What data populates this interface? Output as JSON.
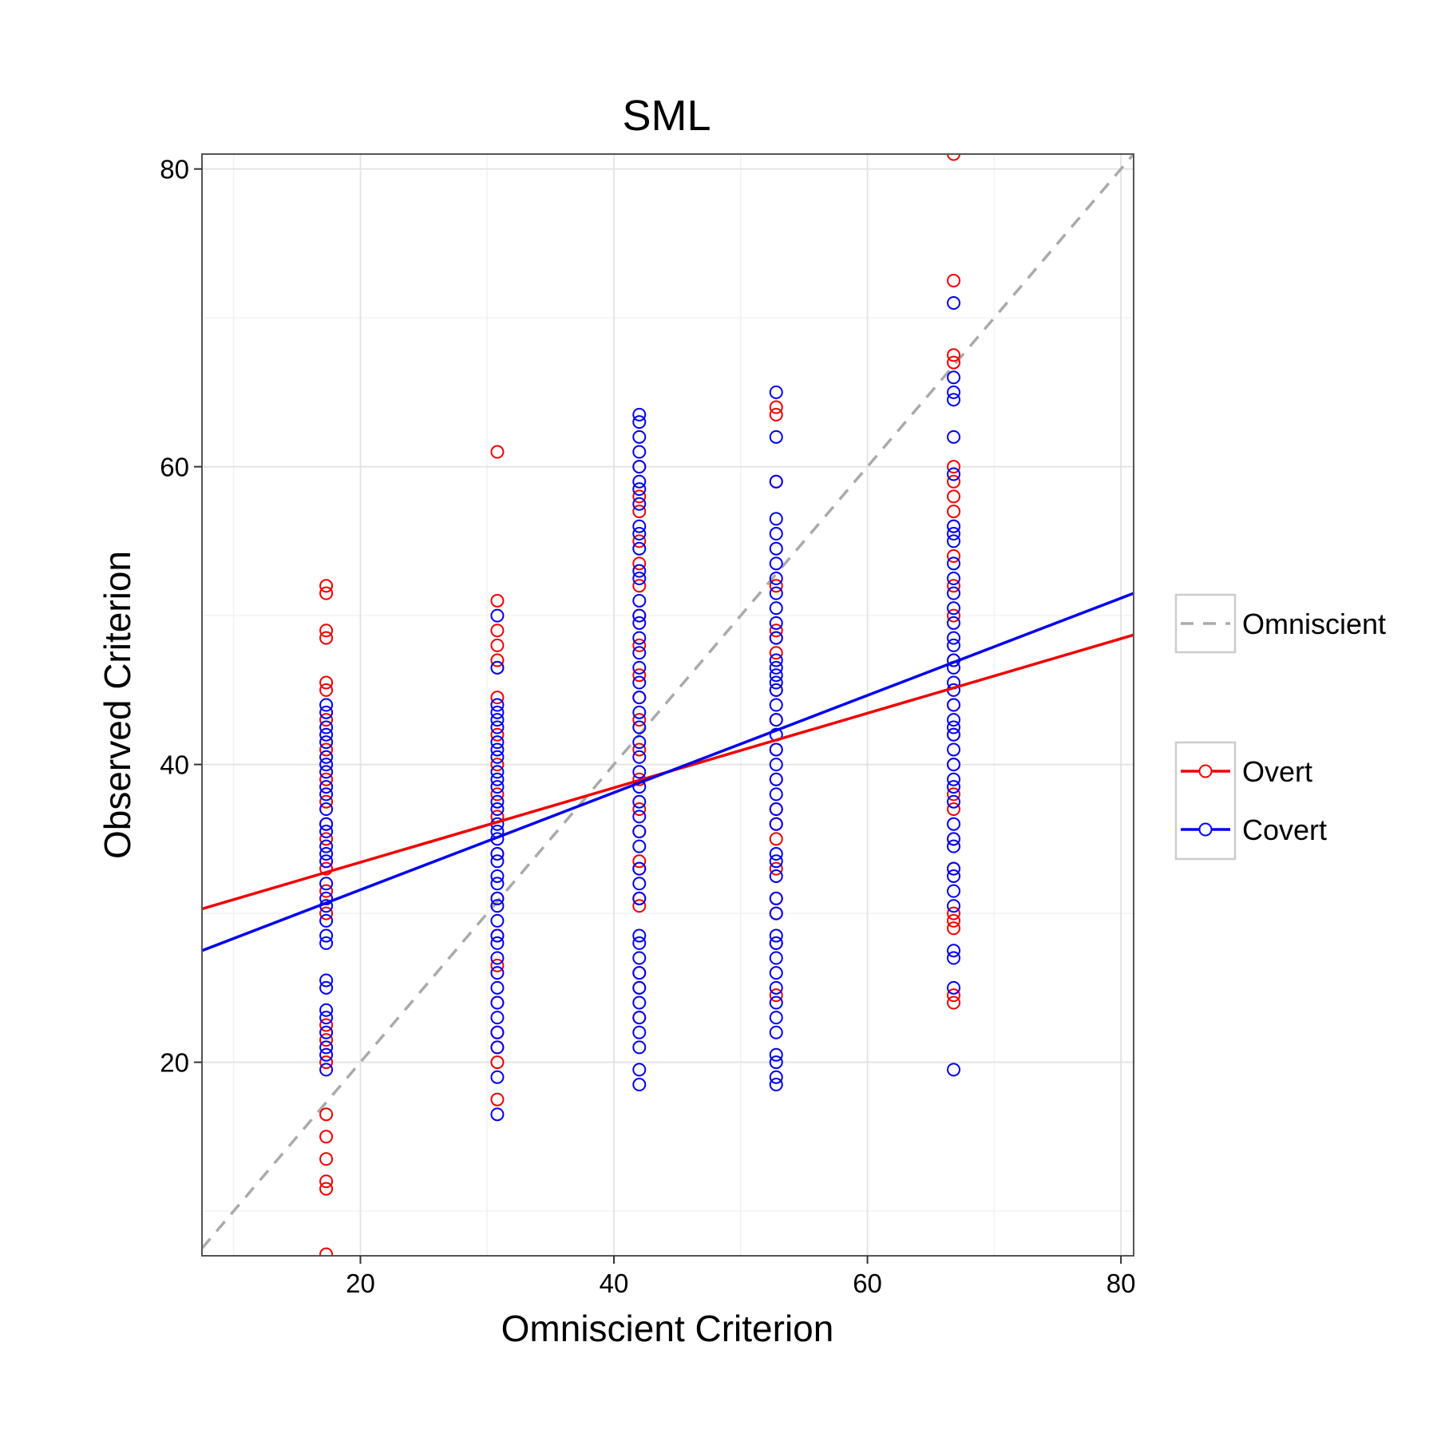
{
  "chart_data": {
    "type": "scatter",
    "title": "SML",
    "xlabel": "Omniscient Criterion",
    "ylabel": "Observed Criterion",
    "xlim": [
      7.5,
      81
    ],
    "ylim": [
      7.0,
      81
    ],
    "x_ticks": [
      20,
      40,
      60,
      80
    ],
    "y_ticks": [
      20,
      40,
      60,
      80
    ],
    "grid": true,
    "legend_position": "right",
    "reference_line": {
      "name": "Omniscient",
      "slope": 1,
      "intercept": 0,
      "color": "#aaaaaa",
      "style": "dashed"
    },
    "series": [
      {
        "name": "Overt",
        "color": "#ee0000",
        "fit": {
          "x": [
            7.5,
            81
          ],
          "y": [
            30.3,
            48.7
          ]
        },
        "points": [
          [
            17.3,
            52.0
          ],
          [
            17.3,
            51.5
          ],
          [
            17.3,
            49.0
          ],
          [
            17.3,
            48.5
          ],
          [
            17.3,
            45.5
          ],
          [
            17.3,
            45.0
          ],
          [
            17.3,
            43.0
          ],
          [
            17.3,
            41.0
          ],
          [
            17.3,
            39.0
          ],
          [
            17.3,
            37.5
          ],
          [
            17.3,
            36.0
          ],
          [
            17.3,
            35.0
          ],
          [
            17.3,
            33.0
          ],
          [
            17.3,
            31.5
          ],
          [
            17.3,
            30.0
          ],
          [
            17.3,
            22.5
          ],
          [
            17.3,
            21.5
          ],
          [
            17.3,
            20.0
          ],
          [
            17.3,
            16.5
          ],
          [
            17.3,
            15.0
          ],
          [
            17.3,
            13.5
          ],
          [
            17.3,
            12.0
          ],
          [
            17.3,
            11.5
          ],
          [
            17.3,
            7.1
          ],
          [
            30.8,
            61.0
          ],
          [
            30.8,
            51.0
          ],
          [
            30.8,
            49.0
          ],
          [
            30.8,
            48.0
          ],
          [
            30.8,
            47.0
          ],
          [
            30.8,
            46.5
          ],
          [
            30.8,
            44.5
          ],
          [
            30.8,
            42.0
          ],
          [
            30.8,
            40.0
          ],
          [
            30.8,
            38.0
          ],
          [
            30.8,
            36.5
          ],
          [
            30.8,
            34.0
          ],
          [
            30.8,
            31.0
          ],
          [
            30.8,
            28.5
          ],
          [
            30.8,
            26.5
          ],
          [
            30.8,
            24.0
          ],
          [
            30.8,
            22.0
          ],
          [
            30.8,
            21.0
          ],
          [
            30.8,
            20.0
          ],
          [
            30.8,
            17.5
          ],
          [
            42.0,
            60.0
          ],
          [
            42.0,
            58.0
          ],
          [
            42.0,
            57.0
          ],
          [
            42.0,
            55.0
          ],
          [
            42.0,
            53.5
          ],
          [
            42.0,
            52.0
          ],
          [
            42.0,
            50.0
          ],
          [
            42.0,
            48.0
          ],
          [
            42.0,
            46.0
          ],
          [
            42.0,
            44.5
          ],
          [
            42.0,
            43.0
          ],
          [
            42.0,
            41.0
          ],
          [
            42.0,
            39.0
          ],
          [
            42.0,
            37.0
          ],
          [
            42.0,
            35.5
          ],
          [
            42.0,
            33.5
          ],
          [
            42.0,
            33.0
          ],
          [
            42.0,
            31.0
          ],
          [
            42.0,
            30.5
          ],
          [
            42.0,
            26.0
          ],
          [
            42.0,
            25.0
          ],
          [
            42.0,
            23.0
          ],
          [
            52.8,
            64.0
          ],
          [
            52.8,
            63.5
          ],
          [
            52.8,
            59.0
          ],
          [
            52.8,
            52.0
          ],
          [
            52.8,
            49.0
          ],
          [
            52.8,
            48.5
          ],
          [
            52.8,
            47.5
          ],
          [
            52.8,
            45.0
          ],
          [
            52.8,
            43.0
          ],
          [
            52.8,
            41.0
          ],
          [
            52.8,
            39.0
          ],
          [
            52.8,
            37.0
          ],
          [
            52.8,
            36.0
          ],
          [
            52.8,
            35.0
          ],
          [
            52.8,
            33.0
          ],
          [
            52.8,
            31.0
          ],
          [
            52.8,
            30.0
          ],
          [
            52.8,
            28.0
          ],
          [
            52.8,
            24.5
          ],
          [
            66.8,
            81.0
          ],
          [
            66.8,
            72.5
          ],
          [
            66.8,
            67.5
          ],
          [
            66.8,
            67.0
          ],
          [
            66.8,
            60.0
          ],
          [
            66.8,
            59.0
          ],
          [
            66.8,
            58.0
          ],
          [
            66.8,
            57.0
          ],
          [
            66.8,
            56.0
          ],
          [
            66.8,
            54.0
          ],
          [
            66.8,
            52.0
          ],
          [
            66.8,
            50.0
          ],
          [
            66.8,
            47.0
          ],
          [
            66.8,
            44.0
          ],
          [
            66.8,
            42.0
          ],
          [
            66.8,
            40.0
          ],
          [
            66.8,
            38.0
          ],
          [
            66.8,
            37.0
          ],
          [
            66.8,
            35.0
          ],
          [
            66.8,
            33.0
          ],
          [
            66.8,
            30.0
          ],
          [
            66.8,
            29.5
          ],
          [
            66.8,
            29.0
          ],
          [
            66.8,
            24.5
          ],
          [
            66.8,
            24.0
          ]
        ]
      },
      {
        "name": "Covert",
        "color": "#0000ee",
        "fit": {
          "x": [
            7.5,
            81
          ],
          "y": [
            27.5,
            51.5
          ]
        },
        "points": [
          [
            17.3,
            44.0
          ],
          [
            17.3,
            43.5
          ],
          [
            17.3,
            42.5
          ],
          [
            17.3,
            42.0
          ],
          [
            17.3,
            41.5
          ],
          [
            17.3,
            40.5
          ],
          [
            17.3,
            40.0
          ],
          [
            17.3,
            39.5
          ],
          [
            17.3,
            38.5
          ],
          [
            17.3,
            38.0
          ],
          [
            17.3,
            37.0
          ],
          [
            17.3,
            36.0
          ],
          [
            17.3,
            35.5
          ],
          [
            17.3,
            34.5
          ],
          [
            17.3,
            34.0
          ],
          [
            17.3,
            33.5
          ],
          [
            17.3,
            32.0
          ],
          [
            17.3,
            31.0
          ],
          [
            17.3,
            30.5
          ],
          [
            17.3,
            29.5
          ],
          [
            17.3,
            28.5
          ],
          [
            17.3,
            28.0
          ],
          [
            17.3,
            25.5
          ],
          [
            17.3,
            25.0
          ],
          [
            17.3,
            23.5
          ],
          [
            17.3,
            23.0
          ],
          [
            17.3,
            22.0
          ],
          [
            17.3,
            21.0
          ],
          [
            17.3,
            20.5
          ],
          [
            17.3,
            19.5
          ],
          [
            30.8,
            50.0
          ],
          [
            30.8,
            46.5
          ],
          [
            30.8,
            44.0
          ],
          [
            30.8,
            43.5
          ],
          [
            30.8,
            43.0
          ],
          [
            30.8,
            42.5
          ],
          [
            30.8,
            41.5
          ],
          [
            30.8,
            41.0
          ],
          [
            30.8,
            40.5
          ],
          [
            30.8,
            39.5
          ],
          [
            30.8,
            39.0
          ],
          [
            30.8,
            38.5
          ],
          [
            30.8,
            37.5
          ],
          [
            30.8,
            37.0
          ],
          [
            30.8,
            36.0
          ],
          [
            30.8,
            35.5
          ],
          [
            30.8,
            35.0
          ],
          [
            30.8,
            34.0
          ],
          [
            30.8,
            33.5
          ],
          [
            30.8,
            32.5
          ],
          [
            30.8,
            32.0
          ],
          [
            30.8,
            31.0
          ],
          [
            30.8,
            30.5
          ],
          [
            30.8,
            29.5
          ],
          [
            30.8,
            28.5
          ],
          [
            30.8,
            28.0
          ],
          [
            30.8,
            27.0
          ],
          [
            30.8,
            26.0
          ],
          [
            30.8,
            25.0
          ],
          [
            30.8,
            24.0
          ],
          [
            30.8,
            23.0
          ],
          [
            30.8,
            22.0
          ],
          [
            30.8,
            21.0
          ],
          [
            30.8,
            19.0
          ],
          [
            30.8,
            16.5
          ],
          [
            42.0,
            63.5
          ],
          [
            42.0,
            63.0
          ],
          [
            42.0,
            62.0
          ],
          [
            42.0,
            61.0
          ],
          [
            42.0,
            60.0
          ],
          [
            42.0,
            59.0
          ],
          [
            42.0,
            58.5
          ],
          [
            42.0,
            57.5
          ],
          [
            42.0,
            56.0
          ],
          [
            42.0,
            55.5
          ],
          [
            42.0,
            54.5
          ],
          [
            42.0,
            53.0
          ],
          [
            42.0,
            52.5
          ],
          [
            42.0,
            51.0
          ],
          [
            42.0,
            50.0
          ],
          [
            42.0,
            49.5
          ],
          [
            42.0,
            48.5
          ],
          [
            42.0,
            47.5
          ],
          [
            42.0,
            46.5
          ],
          [
            42.0,
            45.5
          ],
          [
            42.0,
            44.5
          ],
          [
            42.0,
            43.5
          ],
          [
            42.0,
            42.5
          ],
          [
            42.0,
            41.5
          ],
          [
            42.0,
            40.5
          ],
          [
            42.0,
            39.5
          ],
          [
            42.0,
            38.5
          ],
          [
            42.0,
            37.5
          ],
          [
            42.0,
            36.5
          ],
          [
            42.0,
            35.5
          ],
          [
            42.0,
            34.5
          ],
          [
            42.0,
            33.0
          ],
          [
            42.0,
            32.0
          ],
          [
            42.0,
            31.0
          ],
          [
            42.0,
            28.5
          ],
          [
            42.0,
            28.0
          ],
          [
            42.0,
            27.0
          ],
          [
            42.0,
            26.0
          ],
          [
            42.0,
            25.0
          ],
          [
            42.0,
            24.0
          ],
          [
            42.0,
            23.0
          ],
          [
            42.0,
            22.0
          ],
          [
            42.0,
            21.0
          ],
          [
            42.0,
            19.5
          ],
          [
            42.0,
            18.5
          ],
          [
            52.8,
            65.0
          ],
          [
            52.8,
            62.0
          ],
          [
            52.8,
            59.0
          ],
          [
            52.8,
            56.5
          ],
          [
            52.8,
            55.5
          ],
          [
            52.8,
            54.5
          ],
          [
            52.8,
            53.5
          ],
          [
            52.8,
            52.5
          ],
          [
            52.8,
            51.5
          ],
          [
            52.8,
            50.5
          ],
          [
            52.8,
            49.5
          ],
          [
            52.8,
            48.5
          ],
          [
            52.8,
            47.0
          ],
          [
            52.8,
            46.5
          ],
          [
            52.8,
            46.0
          ],
          [
            52.8,
            45.5
          ],
          [
            52.8,
            45.0
          ],
          [
            52.8,
            44.0
          ],
          [
            52.8,
            43.0
          ],
          [
            52.8,
            42.0
          ],
          [
            52.8,
            41.0
          ],
          [
            52.8,
            40.0
          ],
          [
            52.8,
            39.0
          ],
          [
            52.8,
            38.0
          ],
          [
            52.8,
            37.0
          ],
          [
            52.8,
            36.0
          ],
          [
            52.8,
            34.0
          ],
          [
            52.8,
            33.5
          ],
          [
            52.8,
            32.5
          ],
          [
            52.8,
            31.0
          ],
          [
            52.8,
            30.0
          ],
          [
            52.8,
            28.5
          ],
          [
            52.8,
            28.0
          ],
          [
            52.8,
            27.0
          ],
          [
            52.8,
            26.0
          ],
          [
            52.8,
            25.0
          ],
          [
            52.8,
            24.0
          ],
          [
            52.8,
            23.0
          ],
          [
            52.8,
            22.0
          ],
          [
            52.8,
            20.5
          ],
          [
            52.8,
            20.0
          ],
          [
            52.8,
            19.0
          ],
          [
            52.8,
            18.5
          ],
          [
            66.8,
            71.0
          ],
          [
            66.8,
            66.0
          ],
          [
            66.8,
            65.0
          ],
          [
            66.8,
            64.5
          ],
          [
            66.8,
            62.0
          ],
          [
            66.8,
            59.5
          ],
          [
            66.8,
            56.0
          ],
          [
            66.8,
            55.5
          ],
          [
            66.8,
            55.0
          ],
          [
            66.8,
            53.5
          ],
          [
            66.8,
            52.5
          ],
          [
            66.8,
            51.5
          ],
          [
            66.8,
            50.5
          ],
          [
            66.8,
            49.5
          ],
          [
            66.8,
            48.5
          ],
          [
            66.8,
            48.0
          ],
          [
            66.8,
            47.0
          ],
          [
            66.8,
            46.5
          ],
          [
            66.8,
            45.5
          ],
          [
            66.8,
            45.0
          ],
          [
            66.8,
            44.0
          ],
          [
            66.8,
            43.0
          ],
          [
            66.8,
            42.5
          ],
          [
            66.8,
            42.0
          ],
          [
            66.8,
            41.0
          ],
          [
            66.8,
            40.0
          ],
          [
            66.8,
            39.0
          ],
          [
            66.8,
            38.5
          ],
          [
            66.8,
            37.5
          ],
          [
            66.8,
            36.0
          ],
          [
            66.8,
            35.0
          ],
          [
            66.8,
            34.5
          ],
          [
            66.8,
            33.0
          ],
          [
            66.8,
            32.5
          ],
          [
            66.8,
            31.5
          ],
          [
            66.8,
            30.5
          ],
          [
            66.8,
            27.5
          ],
          [
            66.8,
            27.0
          ],
          [
            66.8,
            25.0
          ],
          [
            66.8,
            19.5
          ]
        ]
      }
    ]
  }
}
